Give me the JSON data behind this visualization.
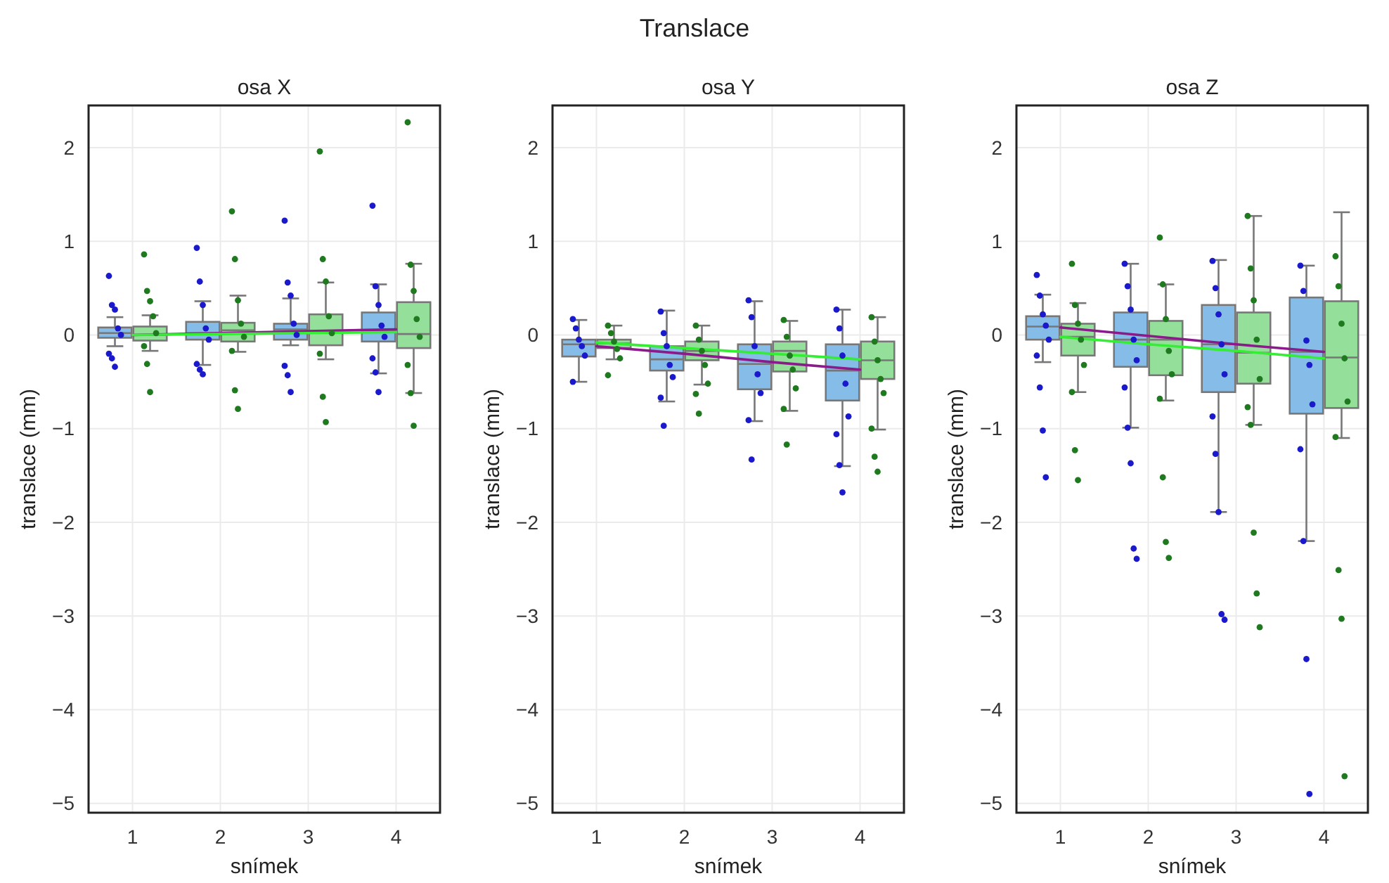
{
  "chart_data": [
    {
      "type": "box",
      "title": "osa X",
      "xlabel": "snímek",
      "ylabel": "translace (mm)",
      "annotations": [
        "Translace"
      ],
      "categories": [
        "1",
        "2",
        "3",
        "4"
      ],
      "ylim": [
        -5.1,
        2.45
      ],
      "yticks": [
        -5,
        -4,
        -3,
        -2,
        -1,
        0,
        1,
        2
      ],
      "grid": true,
      "marker": "circle",
      "line_style": "solid",
      "series": [
        {
          "color": "#85bde8",
          "boxes": [
            {
              "low": -0.12,
              "q1": -0.03,
              "median": 0.02,
              "q3": 0.08,
              "high": 0.19
            },
            {
              "low": -0.32,
              "q1": -0.05,
              "median": 0.02,
              "q3": 0.14,
              "high": 0.36
            },
            {
              "low": -0.11,
              "q1": -0.05,
              "median": 0.06,
              "q3": 0.12,
              "high": 0.39
            },
            {
              "low": -0.41,
              "q1": -0.07,
              "median": 0.05,
              "q3": 0.24,
              "high": 0.54
            }
          ]
        },
        {
          "color": "#94e09a",
          "boxes": [
            {
              "low": -0.17,
              "q1": -0.06,
              "median": 0,
              "q3": 0.09,
              "high": 0.21
            },
            {
              "low": -0.18,
              "q1": -0.07,
              "median": 0.05,
              "q3": 0.13,
              "high": 0.42
            },
            {
              "low": -0.26,
              "q1": -0.11,
              "median": 0.02,
              "q3": 0.22,
              "high": 0.56
            },
            {
              "low": -0.62,
              "q1": -0.14,
              "median": 0.01,
              "q3": 0.35,
              "high": 0.76
            }
          ]
        },
        {
          "type": "scatter",
          "color": "#1a1acc",
          "x": [
            "1",
            "1",
            "1",
            "1",
            "1",
            "1",
            "1",
            "1",
            "2",
            "2",
            "2",
            "2",
            "2",
            "2",
            "2",
            "2",
            "3",
            "3",
            "3",
            "3",
            "3",
            "3",
            "3",
            "3",
            "4",
            "4",
            "4",
            "4",
            "4",
            "4",
            "4",
            "4"
          ],
          "values": [
            0.63,
            0.32,
            0.27,
            0.07,
            0,
            -0.2,
            -0.25,
            -0.34,
            0.93,
            0.57,
            0.32,
            0.07,
            -0.05,
            -0.31,
            -0.37,
            -0.42,
            1.22,
            0.56,
            0.42,
            0.12,
            0,
            -0.33,
            -0.43,
            -0.61,
            1.38,
            0.52,
            0.32,
            0.1,
            -0.02,
            -0.25,
            -0.4,
            -0.61
          ]
        },
        {
          "type": "scatter",
          "color": "#1f7a1f",
          "x": [
            "1",
            "1",
            "1",
            "1",
            "1",
            "1",
            "1",
            "1",
            "2",
            "2",
            "2",
            "2",
            "2",
            "2",
            "2",
            "2",
            "3",
            "3",
            "3",
            "3",
            "3",
            "3",
            "3",
            "3",
            "4",
            "4",
            "4",
            "4",
            "4",
            "4",
            "4",
            "4"
          ],
          "values": [
            0.86,
            0.47,
            0.36,
            0.2,
            0.02,
            -0.12,
            -0.31,
            -0.61,
            1.32,
            0.81,
            0.37,
            0.12,
            -0.02,
            -0.17,
            -0.59,
            -0.79,
            1.96,
            0.81,
            0.57,
            0.2,
            0.02,
            -0.2,
            -0.66,
            -0.93,
            2.27,
            0.75,
            0.47,
            0.17,
            -0.02,
            -0.32,
            -0.62,
            -0.97
          ]
        },
        {
          "type": "line",
          "marker": "none",
          "color": "#8b1a8b",
          "x": [
            "1",
            "2",
            "3",
            "4"
          ],
          "values": [
            0,
            0.02,
            0.04,
            0.06
          ]
        },
        {
          "type": "line",
          "marker": "none",
          "color": "#33ee33",
          "x": [
            "1",
            "2",
            "3",
            "4"
          ],
          "values": [
            0,
            0.01,
            0.02,
            0.03
          ]
        }
      ]
    },
    {
      "type": "box",
      "title": "osa Y",
      "xlabel": "snímek",
      "ylabel": "translace (mm)",
      "categories": [
        "1",
        "2",
        "3",
        "4"
      ],
      "ylim": [
        -5.1,
        2.45
      ],
      "yticks": [
        -5,
        -4,
        -3,
        -2,
        -1,
        0,
        1,
        2
      ],
      "grid": true,
      "marker": "circle",
      "line_style": "solid",
      "series": [
        {
          "color": "#85bde8",
          "boxes": [
            {
              "low": -0.5,
              "q1": -0.23,
              "median": -0.1,
              "q3": -0.05,
              "high": 0.16
            },
            {
              "low": -0.71,
              "q1": -0.38,
              "median": -0.26,
              "q3": -0.12,
              "high": 0.26
            },
            {
              "low": -0.92,
              "q1": -0.58,
              "median": -0.31,
              "q3": -0.1,
              "high": 0.36
            },
            {
              "low": -1.4,
              "q1": -0.7,
              "median": -0.38,
              "q3": -0.1,
              "high": 0.27
            }
          ]
        },
        {
          "color": "#94e09a",
          "boxes": [
            {
              "low": -0.26,
              "q1": -0.14,
              "median": -0.09,
              "q3": -0.05,
              "high": 0.1
            },
            {
              "low": -0.53,
              "q1": -0.27,
              "median": -0.17,
              "q3": -0.07,
              "high": 0.1
            },
            {
              "low": -0.81,
              "q1": -0.39,
              "median": -0.17,
              "q3": -0.07,
              "high": 0.15
            },
            {
              "low": -1.01,
              "q1": -0.47,
              "median": -0.27,
              "q3": -0.07,
              "high": 0.19
            }
          ]
        },
        {
          "type": "scatter",
          "color": "#1a1acc",
          "x": [
            "1",
            "1",
            "1",
            "1",
            "1",
            "1",
            "2",
            "2",
            "2",
            "2",
            "2",
            "2",
            "2",
            "3",
            "3",
            "3",
            "3",
            "3",
            "3",
            "3",
            "4",
            "4",
            "4",
            "4",
            "4",
            "4",
            "4",
            "4"
          ],
          "values": [
            0.17,
            0.07,
            -0.05,
            -0.12,
            -0.22,
            -0.5,
            0.25,
            0.02,
            -0.12,
            -0.32,
            -0.45,
            -0.67,
            -0.97,
            0.37,
            0.19,
            -0.12,
            -0.42,
            -0.62,
            -0.91,
            -1.33,
            0.27,
            0.07,
            -0.22,
            -0.52,
            -0.87,
            -1.06,
            -1.39,
            -1.68
          ]
        },
        {
          "type": "scatter",
          "color": "#1f7a1f",
          "x": [
            "1",
            "1",
            "1",
            "1",
            "1",
            "1",
            "2",
            "2",
            "2",
            "2",
            "2",
            "2",
            "2",
            "3",
            "3",
            "3",
            "3",
            "3",
            "3",
            "3",
            "4",
            "4",
            "4",
            "4",
            "4",
            "4",
            "4",
            "4"
          ],
          "values": [
            0.1,
            0.02,
            -0.07,
            -0.15,
            -0.25,
            -0.43,
            0.1,
            -0.05,
            -0.17,
            -0.32,
            -0.52,
            -0.63,
            -0.84,
            0.16,
            -0.02,
            -0.22,
            -0.37,
            -0.57,
            -0.79,
            -1.17,
            0.19,
            -0.07,
            -0.27,
            -0.47,
            -0.62,
            -1,
            -1.3,
            -1.46
          ]
        },
        {
          "type": "line",
          "marker": "none",
          "color": "#8b1a8b",
          "x": [
            "1",
            "2",
            "3",
            "4"
          ],
          "values": [
            -0.12,
            -0.2,
            -0.29,
            -0.37
          ]
        },
        {
          "type": "line",
          "marker": "none",
          "color": "#33ee33",
          "x": [
            "1",
            "2",
            "3",
            "4"
          ],
          "values": [
            -0.08,
            -0.14,
            -0.2,
            -0.26
          ]
        }
      ]
    },
    {
      "type": "box",
      "title": "osa Z",
      "xlabel": "snímek",
      "ylabel": "translace (mm)",
      "categories": [
        "1",
        "2",
        "3",
        "4"
      ],
      "ylim": [
        -5.1,
        2.45
      ],
      "yticks": [
        -5,
        -4,
        -3,
        -2,
        -1,
        0,
        1,
        2
      ],
      "grid": true,
      "marker": "circle",
      "line_style": "solid",
      "series": [
        {
          "color": "#85bde8",
          "boxes": [
            {
              "low": -0.29,
              "q1": -0.05,
              "median": 0.09,
              "q3": 0.2,
              "high": 0.43
            },
            {
              "low": -0.99,
              "q1": -0.34,
              "median": -0.05,
              "q3": 0.24,
              "high": 0.76
            },
            {
              "low": -1.89,
              "q1": -0.61,
              "median": -0.1,
              "q3": 0.32,
              "high": 0.8
            },
            {
              "low": -2.2,
              "q1": -0.84,
              "median": -0.18,
              "q3": 0.4,
              "high": 0.74
            }
          ]
        },
        {
          "color": "#94e09a",
          "boxes": [
            {
              "low": -0.61,
              "q1": -0.22,
              "median": -0.02,
              "q3": 0.12,
              "high": 0.34
            },
            {
              "low": -0.7,
              "q1": -0.43,
              "median": -0.05,
              "q3": 0.15,
              "high": 0.54
            },
            {
              "low": -0.96,
              "q1": -0.52,
              "median": -0.19,
              "q3": 0.24,
              "high": 1.27
            },
            {
              "low": -1.1,
              "q1": -0.78,
              "median": -0.24,
              "q3": 0.36,
              "high": 1.31
            }
          ]
        },
        {
          "type": "scatter",
          "color": "#1a1acc",
          "x": [
            "1",
            "1",
            "1",
            "1",
            "1",
            "1",
            "1",
            "1",
            "1",
            "2",
            "2",
            "2",
            "2",
            "2",
            "2",
            "2",
            "2",
            "2",
            "2",
            "3",
            "3",
            "3",
            "3",
            "3",
            "3",
            "3",
            "3",
            "3",
            "3",
            "4",
            "4",
            "4",
            "4",
            "4",
            "4",
            "4",
            "4",
            "4"
          ],
          "values": [
            0.64,
            0.42,
            0.22,
            0.1,
            -0.05,
            -0.22,
            -0.56,
            -1.02,
            -1.52,
            0.76,
            0.52,
            0.27,
            -0.05,
            -0.27,
            -0.56,
            -0.99,
            -1.37,
            -2.28,
            -2.39,
            0.79,
            0.5,
            0.22,
            -0.1,
            -0.42,
            -0.87,
            -1.27,
            -1.89,
            -2.98,
            -3.04,
            0.74,
            0.47,
            -0.06,
            -0.32,
            -0.74,
            -1.22,
            -2.2,
            -3.46,
            -4.9
          ]
        },
        {
          "type": "scatter",
          "color": "#1f7a1f",
          "x": [
            "1",
            "1",
            "1",
            "1",
            "1",
            "1",
            "1",
            "1",
            "2",
            "2",
            "2",
            "2",
            "2",
            "2",
            "2",
            "2",
            "2",
            "3",
            "3",
            "3",
            "3",
            "3",
            "3",
            "3",
            "3",
            "3",
            "3",
            "4",
            "4",
            "4",
            "4",
            "4",
            "4",
            "4",
            "4",
            "4"
          ],
          "values": [
            0.76,
            0.32,
            0.12,
            -0.05,
            -0.32,
            -0.61,
            -1.23,
            -1.55,
            1.04,
            0.54,
            0.17,
            -0.17,
            -0.42,
            -0.68,
            -1.52,
            -2.21,
            -2.38,
            1.27,
            0.71,
            0.37,
            -0.05,
            -0.47,
            -0.77,
            -0.96,
            -2.11,
            -2.76,
            -3.12,
            0.84,
            0.52,
            0.12,
            -0.25,
            -0.71,
            -1.09,
            -2.51,
            -3.03,
            -4.71
          ]
        },
        {
          "type": "line",
          "marker": "none",
          "color": "#8b1a8b",
          "x": [
            "1",
            "2",
            "3",
            "4"
          ],
          "values": [
            0.08,
            -0.01,
            -0.1,
            -0.18
          ]
        },
        {
          "type": "line",
          "marker": "none",
          "color": "#33ee33",
          "x": [
            "1",
            "2",
            "3",
            "4"
          ],
          "values": [
            -0.02,
            -0.1,
            -0.17,
            -0.25
          ]
        }
      ]
    }
  ]
}
